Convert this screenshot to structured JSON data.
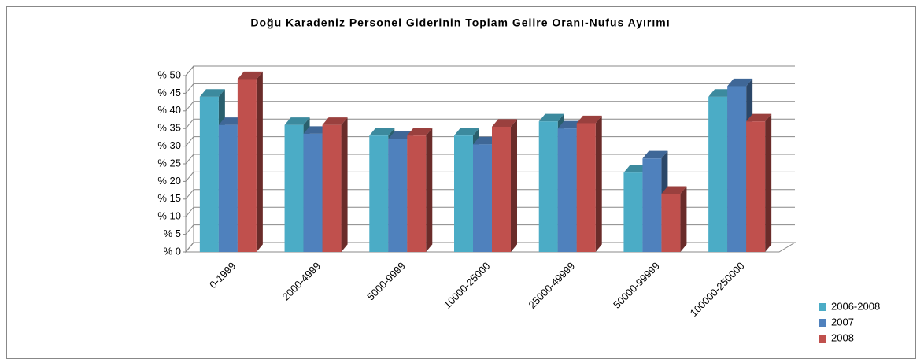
{
  "chart_data": {
    "type": "bar3d",
    "title": "Doğu Karadeniz Personel Giderinin Toplam Gelire Oranı-Nufus Ayırımı",
    "categories": [
      "0-1999",
      "2000-4999",
      "5000-9999",
      "10000-25000",
      "25000-49999",
      "50000-99999",
      "100000-250000"
    ],
    "series": [
      {
        "name": "2006-2008",
        "color": "#4bacc6",
        "values": [
          44,
          36,
          33,
          33,
          37,
          22.5,
          44
        ]
      },
      {
        "name": "2007",
        "color": "#4f81bd",
        "values": [
          36,
          33.5,
          32,
          30.5,
          35,
          26.5,
          47
        ]
      },
      {
        "name": "2008",
        "color": "#c0504d",
        "values": [
          49,
          36,
          33,
          35.5,
          36.5,
          16.5,
          37
        ]
      }
    ],
    "ylim": [
      0,
      50
    ],
    "yticks": [
      {
        "value": 0,
        "label": "% 0"
      },
      {
        "value": 5,
        "label": "% 5"
      },
      {
        "value": 10,
        "label": "% 10"
      },
      {
        "value": 15,
        "label": "% 15"
      },
      {
        "value": 20,
        "label": "% 20"
      },
      {
        "value": 25,
        "label": "% 25"
      },
      {
        "value": 30,
        "label": "% 30"
      },
      {
        "value": 35,
        "label": "% 35"
      },
      {
        "value": 40,
        "label": "% 40"
      },
      {
        "value": 45,
        "label": "% 45"
      },
      {
        "value": 50,
        "label": "% 50"
      }
    ],
    "grid": true,
    "legend": "bottom-right"
  }
}
